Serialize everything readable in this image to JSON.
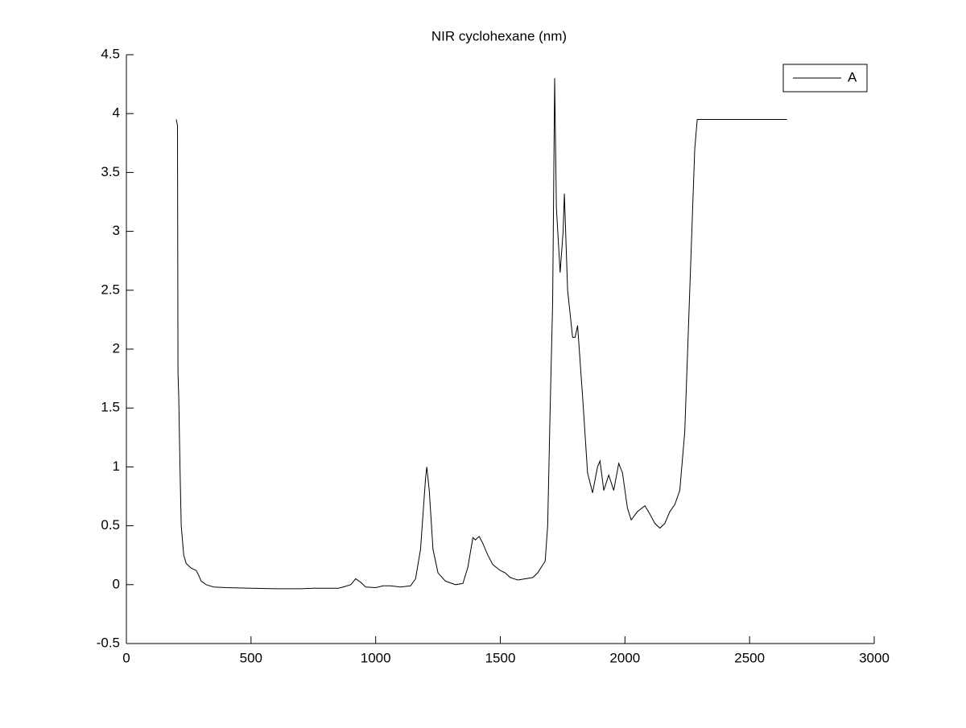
{
  "chart_data": {
    "type": "line",
    "title": "NIR cyclohexane (nm)",
    "x": [
      200,
      205,
      207,
      210,
      215,
      220,
      230,
      240,
      260,
      280,
      290,
      300,
      320,
      350,
      400,
      500,
      600,
      700,
      750,
      800,
      850,
      870,
      900,
      920,
      940,
      960,
      1000,
      1030,
      1060,
      1100,
      1140,
      1160,
      1180,
      1200,
      1205,
      1215,
      1230,
      1250,
      1280,
      1320,
      1350,
      1370,
      1390,
      1400,
      1415,
      1430,
      1450,
      1470,
      1500,
      1520,
      1540,
      1570,
      1600,
      1630,
      1650,
      1680,
      1690,
      1700,
      1710,
      1718,
      1725,
      1740,
      1752,
      1757,
      1770,
      1790,
      1800,
      1810,
      1830,
      1850,
      1870,
      1890,
      1900,
      1915,
      1935,
      1955,
      1975,
      1990,
      2010,
      2025,
      2050,
      2080,
      2100,
      2120,
      2140,
      2160,
      2180,
      2200,
      2220,
      2240,
      2260,
      2280,
      2290,
      2650
    ],
    "series": [
      {
        "name": "A",
        "color": "#000000",
        "values": [
          3.95,
          3.9,
          1.8,
          1.6,
          1.0,
          0.5,
          0.25,
          0.18,
          0.14,
          0.12,
          0.08,
          0.03,
          0.0,
          -0.02,
          -0.025,
          -0.03,
          -0.035,
          -0.035,
          -0.03,
          -0.03,
          -0.03,
          -0.02,
          0.0,
          0.05,
          0.02,
          -0.02,
          -0.025,
          -0.01,
          -0.01,
          -0.02,
          -0.01,
          0.05,
          0.3,
          0.9,
          1.0,
          0.8,
          0.3,
          0.1,
          0.03,
          0.0,
          0.01,
          0.15,
          0.4,
          0.38,
          0.41,
          0.35,
          0.25,
          0.17,
          0.12,
          0.1,
          0.06,
          0.04,
          0.05,
          0.06,
          0.1,
          0.2,
          0.5,
          1.5,
          2.4,
          4.3,
          3.2,
          2.65,
          3.0,
          3.32,
          2.5,
          2.1,
          2.1,
          2.2,
          1.6,
          0.95,
          0.78,
          1.0,
          1.05,
          0.8,
          0.93,
          0.8,
          1.03,
          0.95,
          0.65,
          0.55,
          0.62,
          0.67,
          0.6,
          0.52,
          0.48,
          0.52,
          0.62,
          0.68,
          0.8,
          1.3,
          2.5,
          3.7,
          3.95,
          3.95
        ]
      }
    ],
    "xlim": [
      0,
      3000
    ],
    "xticks": [
      0,
      500,
      1000,
      1500,
      2000,
      2500,
      3000
    ],
    "ylim": [
      -0.5,
      4.5
    ],
    "yticks": [
      -0.5,
      0,
      0.5,
      1,
      1.5,
      2,
      2.5,
      3,
      3.5,
      4,
      4.5
    ],
    "legend": "top-right"
  }
}
